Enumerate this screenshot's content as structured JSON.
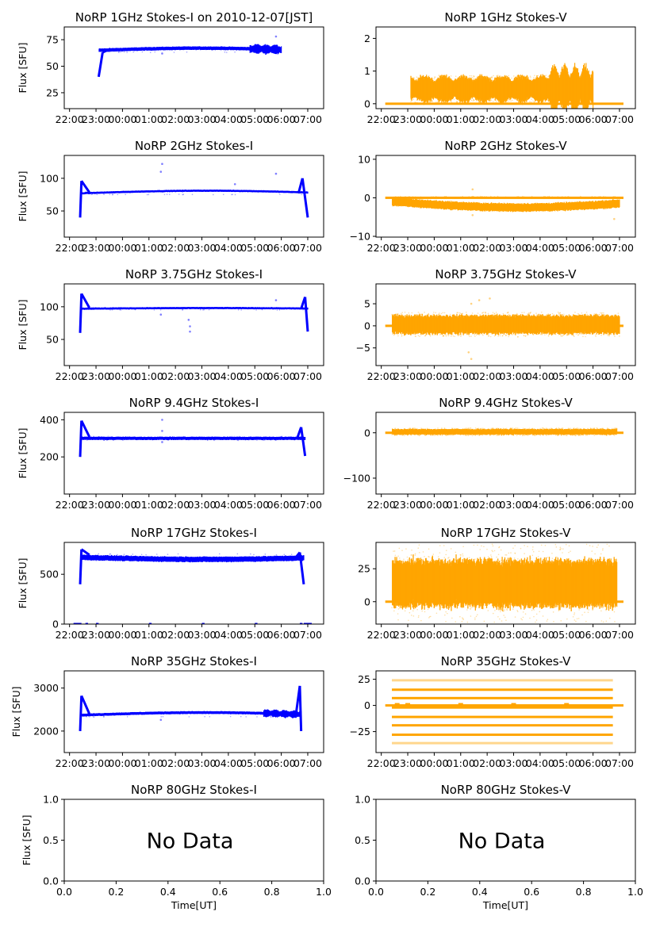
{
  "figure": {
    "date_label": "2010-12-07[JST]",
    "colors": {
      "stokes_i": "#0000ff",
      "stokes_v": "#ffa500",
      "axis": "#000000"
    }
  },
  "chart_data": [
    {
      "type": "scatter",
      "panel": "1GHz-I",
      "title": "NoRP 1GHz Stokes-I on 2010-12-07[JST]",
      "ylabel": "Flux [SFU]",
      "xlabel": "",
      "xlim_hours": [
        -2.2,
        7.6
      ],
      "ylim": [
        10,
        87
      ],
      "yticks": [
        25,
        50,
        75
      ],
      "xticks": [
        "22:00",
        "23:00",
        "00:00",
        "01:00",
        "02:00",
        "03:00",
        "04:00",
        "05:00",
        "06:00",
        "07:00"
      ],
      "color": "#0000ff",
      "series": {
        "start": -0.9,
        "end": 6.0,
        "baseline": 65,
        "band": 1.5,
        "onset": [
          -0.9,
          40,
          -0.75,
          63
        ],
        "outliers": [
          [
            5.8,
            78
          ],
          [
            1.5,
            62
          ]
        ],
        "drift": 2.0,
        "oscillation_from": 4.8
      }
    },
    {
      "type": "scatter",
      "panel": "1GHz-V",
      "title": "NoRP 1GHz Stokes-V",
      "ylabel": "",
      "xlabel": "",
      "xlim_hours": [
        -2.2,
        7.6
      ],
      "ylim": [
        -0.15,
        2.35
      ],
      "yticks": [
        0,
        1,
        2
      ],
      "xticks": [
        "22:00",
        "23:00",
        "00:00",
        "01:00",
        "02:00",
        "03:00",
        "04:00",
        "05:00",
        "06:00",
        "07:00"
      ],
      "color": "#ffa500",
      "series": {
        "start": -0.9,
        "end": 6.0,
        "baseline": 0.45,
        "band": 0.3,
        "zero_line": [
          -1.85,
          7.15
        ],
        "outliers": [],
        "drift": 0,
        "oscillation_from": 4.3
      }
    },
    {
      "type": "scatter",
      "panel": "2GHz-I",
      "title": "NoRP 2GHz Stokes-I",
      "ylabel": "Flux [SFU]",
      "xlabel": "",
      "xlim_hours": [
        -2.2,
        7.6
      ],
      "ylim": [
        10,
        135
      ],
      "yticks": [
        50,
        100
      ],
      "xticks": [
        "22:00",
        "23:00",
        "00:00",
        "01:00",
        "02:00",
        "03:00",
        "04:00",
        "05:00",
        "06:00",
        "07:00"
      ],
      "color": "#0000ff",
      "series": {
        "start": -1.6,
        "end": 7.0,
        "baseline": 77,
        "band": 1.5,
        "onset": [
          -1.6,
          40,
          -1.55,
          96
        ],
        "end_spike": [
          6.8,
          100,
          7.0,
          40
        ],
        "outliers": [
          [
            1.5,
            122
          ],
          [
            1.45,
            110
          ],
          [
            4.25,
            91
          ],
          [
            5.8,
            107
          ]
        ],
        "drift": 4,
        "oscillation_from": null
      }
    },
    {
      "type": "scatter",
      "panel": "2GHz-V",
      "title": "NoRP 2GHz Stokes-V",
      "ylabel": "",
      "xlabel": "",
      "xlim_hours": [
        -2.2,
        7.6
      ],
      "ylim": [
        -10.2,
        11
      ],
      "yticks": [
        -10,
        0,
        10
      ],
      "xticks": [
        "22:00",
        "23:00",
        "00:00",
        "01:00",
        "02:00",
        "03:00",
        "04:00",
        "05:00",
        "06:00",
        "07:00"
      ],
      "color": "#ffa500",
      "series": {
        "start": -1.6,
        "end": 7.0,
        "baseline": -1.0,
        "band": 1.0,
        "zero_line": [
          -1.85,
          7.15
        ],
        "outliers": [
          [
            1.45,
            2.2
          ],
          [
            1.45,
            -4.5
          ],
          [
            6.8,
            -5.5
          ]
        ],
        "drift": -1.5,
        "oscillation_from": null
      }
    },
    {
      "type": "scatter",
      "panel": "3.75GHz-I",
      "title": "NoRP 3.75GHz Stokes-I",
      "ylabel": "Flux [SFU]",
      "xlabel": "",
      "xlim_hours": [
        -2.2,
        7.6
      ],
      "ylim": [
        10,
        135
      ],
      "yticks": [
        50,
        100
      ],
      "xticks": [
        "22:00",
        "23:00",
        "00:00",
        "01:00",
        "02:00",
        "03:00",
        "04:00",
        "05:00",
        "06:00",
        "07:00"
      ],
      "color": "#0000ff",
      "series": {
        "start": -1.6,
        "end": 7.0,
        "baseline": 97,
        "band": 1.5,
        "onset": [
          -1.6,
          60,
          -1.55,
          120
        ],
        "end_spike": [
          6.9,
          115,
          7.0,
          62
        ],
        "outliers": [
          [
            1.45,
            88
          ],
          [
            2.55,
            62
          ],
          [
            2.55,
            70
          ],
          [
            2.5,
            80
          ],
          [
            5.8,
            110
          ]
        ],
        "drift": 1,
        "oscillation_from": null
      }
    },
    {
      "type": "scatter",
      "panel": "3.75GHz-V",
      "title": "NoRP 3.75GHz Stokes-V",
      "ylabel": "",
      "xlabel": "",
      "xlim_hours": [
        -2.2,
        7.6
      ],
      "ylim": [
        -9,
        9.5
      ],
      "yticks": [
        -5,
        0,
        5
      ],
      "xticks": [
        "22:00",
        "23:00",
        "00:00",
        "01:00",
        "02:00",
        "03:00",
        "04:00",
        "05:00",
        "06:00",
        "07:00"
      ],
      "color": "#ffa500",
      "series": {
        "start": -1.6,
        "end": 7.0,
        "baseline": 0.3,
        "band": 2.0,
        "zero_line": [
          -1.85,
          7.15
        ],
        "outliers": [
          [
            1.4,
            5
          ],
          [
            1.4,
            -7.5
          ],
          [
            1.7,
            5.8
          ],
          [
            2.1,
            6.2
          ],
          [
            1.3,
            -6
          ]
        ],
        "drift": 0,
        "oscillation_from": null
      }
    },
    {
      "type": "scatter",
      "panel": "9.4GHz-I",
      "title": "NoRP 9.4GHz Stokes-I",
      "ylabel": "Flux [SFU]",
      "xlabel": "",
      "xlim_hours": [
        -2.2,
        7.6
      ],
      "ylim": [
        0,
        440
      ],
      "yticks": [
        200,
        400
      ],
      "xticks": [
        "22:00",
        "23:00",
        "00:00",
        "01:00",
        "02:00",
        "03:00",
        "04:00",
        "05:00",
        "06:00",
        "07:00"
      ],
      "color": "#0000ff",
      "series": {
        "start": -1.6,
        "end": 6.9,
        "baseline": 300,
        "band": 8,
        "onset": [
          -1.6,
          200,
          -1.55,
          395
        ],
        "end_spike": [
          6.75,
          360,
          6.9,
          205
        ],
        "outliers": [
          [
            1.5,
            400
          ],
          [
            1.5,
            340
          ],
          [
            1.5,
            280
          ]
        ],
        "drift": 0,
        "oscillation_from": null
      }
    },
    {
      "type": "scatter",
      "panel": "9.4GHz-V",
      "title": "NoRP 9.4GHz Stokes-V",
      "ylabel": "",
      "xlabel": "",
      "xlim_hours": [
        -2.2,
        7.6
      ],
      "ylim": [
        -135,
        45
      ],
      "yticks": [
        -100,
        0
      ],
      "xticks": [
        "22:00",
        "23:00",
        "00:00",
        "01:00",
        "02:00",
        "03:00",
        "04:00",
        "05:00",
        "06:00",
        "07:00"
      ],
      "color": "#ffa500",
      "series": {
        "start": -1.6,
        "end": 6.9,
        "baseline": 2,
        "band": 6,
        "zero_line": [
          -1.85,
          7.15
        ],
        "outliers": [],
        "drift": 0,
        "oscillation_from": null
      }
    },
    {
      "type": "scatter",
      "panel": "17GHz-I",
      "title": "NoRP 17GHz Stokes-I",
      "ylabel": "Flux [SFU]",
      "xlabel": "",
      "xlim_hours": [
        -2.2,
        7.6
      ],
      "ylim": [
        0,
        820
      ],
      "yticks": [
        0,
        500
      ],
      "xticks": [
        "22:00",
        "23:00",
        "00:00",
        "01:00",
        "02:00",
        "03:00",
        "04:00",
        "05:00",
        "06:00",
        "07:00"
      ],
      "color": "#0000ff",
      "series": {
        "start": -1.6,
        "end": 6.85,
        "baseline": 670,
        "band": 25,
        "onset": [
          -1.6,
          400,
          -1.55,
          750
        ],
        "end_spike": [
          6.7,
          720,
          6.85,
          400
        ],
        "outliers": [],
        "drift": -20,
        "oscillation_from": null
      }
    },
    {
      "type": "scatter",
      "panel": "17GHz-V",
      "title": "NoRP 17GHz Stokes-V",
      "ylabel": "",
      "xlabel": "",
      "xlim_hours": [
        -2.2,
        7.6
      ],
      "ylim": [
        -17,
        45
      ],
      "yticks": [
        0,
        25
      ],
      "xticks": [
        "22:00",
        "23:00",
        "00:00",
        "01:00",
        "02:00",
        "03:00",
        "04:00",
        "05:00",
        "06:00",
        "07:00"
      ],
      "color": "#ffa500",
      "series": {
        "start": -1.6,
        "end": 6.9,
        "baseline": 14,
        "band": 17,
        "zero_line": [
          -1.85,
          7.15
        ],
        "outliers": [],
        "drift": 0,
        "oscillation_from": null
      }
    },
    {
      "type": "scatter",
      "panel": "35GHz-I",
      "title": "NoRP 35GHz Stokes-I",
      "ylabel": "Flux [SFU]",
      "xlabel": "",
      "xlim_hours": [
        -2.2,
        7.6
      ],
      "ylim": [
        1500,
        3400
      ],
      "yticks": [
        2000,
        3000
      ],
      "xticks": [
        "22:00",
        "23:00",
        "00:00",
        "01:00",
        "02:00",
        "03:00",
        "04:00",
        "05:00",
        "06:00",
        "07:00"
      ],
      "color": "#0000ff",
      "series": {
        "start": -1.6,
        "end": 6.75,
        "baseline": 2370,
        "band": 30,
        "onset": [
          -1.6,
          2000,
          -1.55,
          2820
        ],
        "end_spike": [
          6.7,
          3050,
          6.75,
          2000
        ],
        "outliers": [
          [
            1.45,
            2260
          ]
        ],
        "drift": 60,
        "oscillation_from": 5.3
      }
    },
    {
      "type": "scatter",
      "panel": "35GHz-V",
      "title": "NoRP 35GHz Stokes-V",
      "ylabel": "",
      "xlabel": "",
      "xlim_hours": [
        -2.2,
        7.6
      ],
      "ylim": [
        -45,
        33
      ],
      "yticks": [
        -25,
        0,
        25
      ],
      "xticks": [
        "22:00",
        "23:00",
        "00:00",
        "01:00",
        "02:00",
        "03:00",
        "04:00",
        "05:00",
        "06:00",
        "07:00"
      ],
      "color": "#ffa500",
      "series": {
        "start": -1.6,
        "end": 6.75,
        "baseline": 0,
        "band": 0,
        "zero_line": [
          -1.85,
          7.15
        ],
        "levels": [
          24,
          15,
          7,
          -2,
          -11,
          -19,
          -28,
          -36
        ],
        "faint_levels": [
          24,
          -36
        ],
        "outliers": [],
        "drift": 0,
        "oscillation_from": null
      }
    },
    {
      "type": "scatter",
      "panel": "80GHz-I",
      "title": "NoRP 80GHz Stokes-I",
      "ylabel": "Flux [SFU]",
      "xlabel": "Time[UT]",
      "xlim": [
        0,
        1
      ],
      "ylim": [
        0,
        1
      ],
      "yticks": [
        "0.0",
        "0.5",
        "1.0"
      ],
      "xticks": [
        "0.0",
        "0.2",
        "0.4",
        "0.6",
        "0.8",
        "1.0"
      ],
      "annotation": "No Data",
      "color": "#0000ff",
      "series": null
    },
    {
      "type": "scatter",
      "panel": "80GHz-V",
      "title": "NoRP 80GHz Stokes-V",
      "ylabel": "",
      "xlabel": "Time[UT]",
      "xlim": [
        0,
        1
      ],
      "ylim": [
        0,
        1
      ],
      "yticks": [
        "0.0",
        "0.5",
        "1.0"
      ],
      "xticks": [
        "0.0",
        "0.2",
        "0.4",
        "0.6",
        "0.8",
        "1.0"
      ],
      "annotation": "No Data",
      "color": "#ffa500",
      "series": null
    }
  ]
}
